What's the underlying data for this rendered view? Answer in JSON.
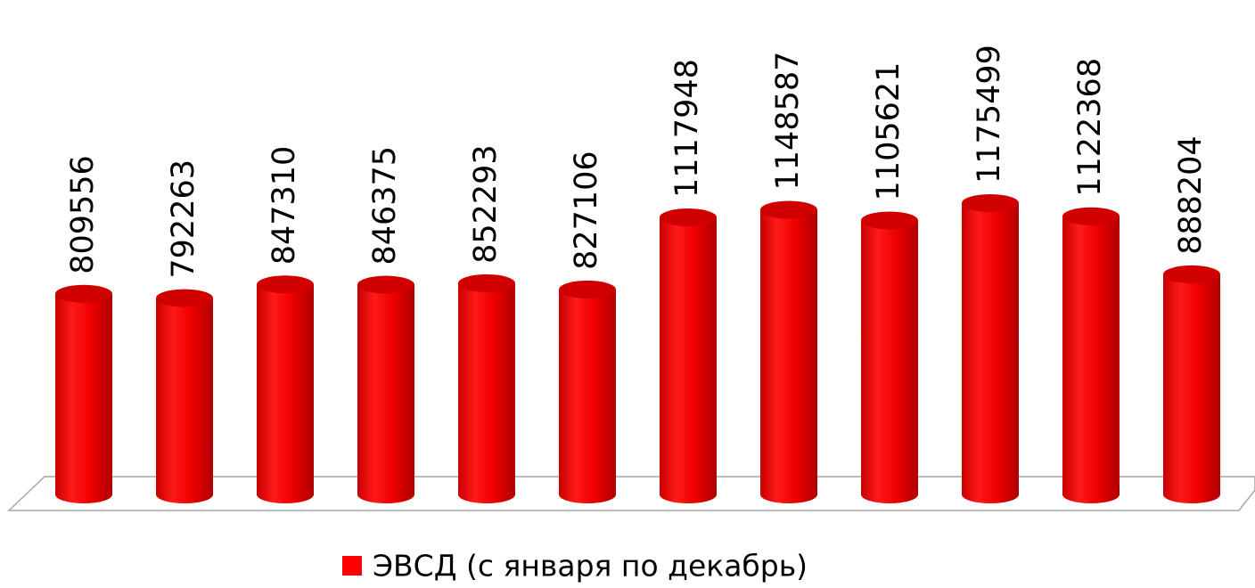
{
  "chart_data": {
    "type": "bar",
    "categories": [
      null,
      null,
      null,
      null,
      null,
      null,
      null,
      null,
      null,
      null,
      null,
      null
    ],
    "series": [
      {
        "name": "ЭВСД (с января по декабрь)",
        "color": "#ff0000",
        "values": [
          809556,
          792263,
          847310,
          846375,
          852293,
          827106,
          1117948,
          1148587,
          1105621,
          1175499,
          1122368,
          888204
        ]
      }
    ],
    "legend": "bottom"
  }
}
